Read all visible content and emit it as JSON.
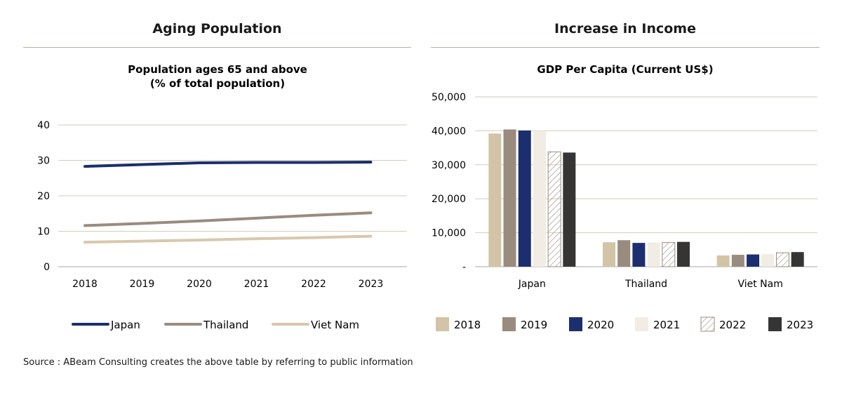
{
  "left_panel": {
    "heading": "Aging Population"
  },
  "right_panel": {
    "heading": "Increase in Income"
  },
  "source": "Source : ABeam Consulting creates the above table by referring to public information",
  "chart_data": [
    {
      "type": "line",
      "title": "Population ages 65 and above",
      "subtitle": "(% of total population)",
      "x": [
        "2018",
        "2019",
        "2020",
        "2021",
        "2022",
        "2023"
      ],
      "ylim": [
        0,
        40
      ],
      "yticks": [
        "0",
        "10",
        "20",
        "30",
        "40"
      ],
      "grid": true,
      "legend_position": "bottom",
      "series": [
        {
          "name": "Japan",
          "color": "#1b2f6e",
          "values": [
            28.3,
            28.8,
            29.3,
            29.4,
            29.4,
            29.5
          ]
        },
        {
          "name": "Thailand",
          "color": "#9a8b7f",
          "values": [
            11.6,
            12.2,
            12.9,
            13.7,
            14.5,
            15.2
          ]
        },
        {
          "name": "Viet Nam",
          "color": "#d8c8ad",
          "values": [
            6.9,
            7.2,
            7.5,
            7.9,
            8.2,
            8.6
          ]
        }
      ]
    },
    {
      "type": "bar",
      "title": "GDP Per Capita (Current US$)",
      "categories": [
        "Japan",
        "Thailand",
        "Viet Nam"
      ],
      "ylim": [
        0,
        50000
      ],
      "yticks": [
        "-",
        "10,000",
        "20,000",
        "30,000",
        "40,000",
        "50,000"
      ],
      "grid": true,
      "legend_position": "bottom",
      "series": [
        {
          "name": "2018",
          "color": "#d3c4a8",
          "values": [
            39200,
            7200,
            3300
          ]
        },
        {
          "name": "2019",
          "color": "#9a8b7f",
          "values": [
            40400,
            7800,
            3500
          ]
        },
        {
          "name": "2020",
          "color": "#1b2f6e",
          "values": [
            40100,
            7000,
            3600
          ]
        },
        {
          "name": "2021",
          "color": "#f1ece4",
          "values": [
            40000,
            7100,
            3700
          ]
        },
        {
          "name": "2022",
          "color": "#ffffff",
          "hatched": true,
          "values": [
            33800,
            7100,
            4100
          ]
        },
        {
          "name": "2023",
          "color": "#353535",
          "values": [
            33600,
            7300,
            4300
          ]
        }
      ]
    }
  ]
}
